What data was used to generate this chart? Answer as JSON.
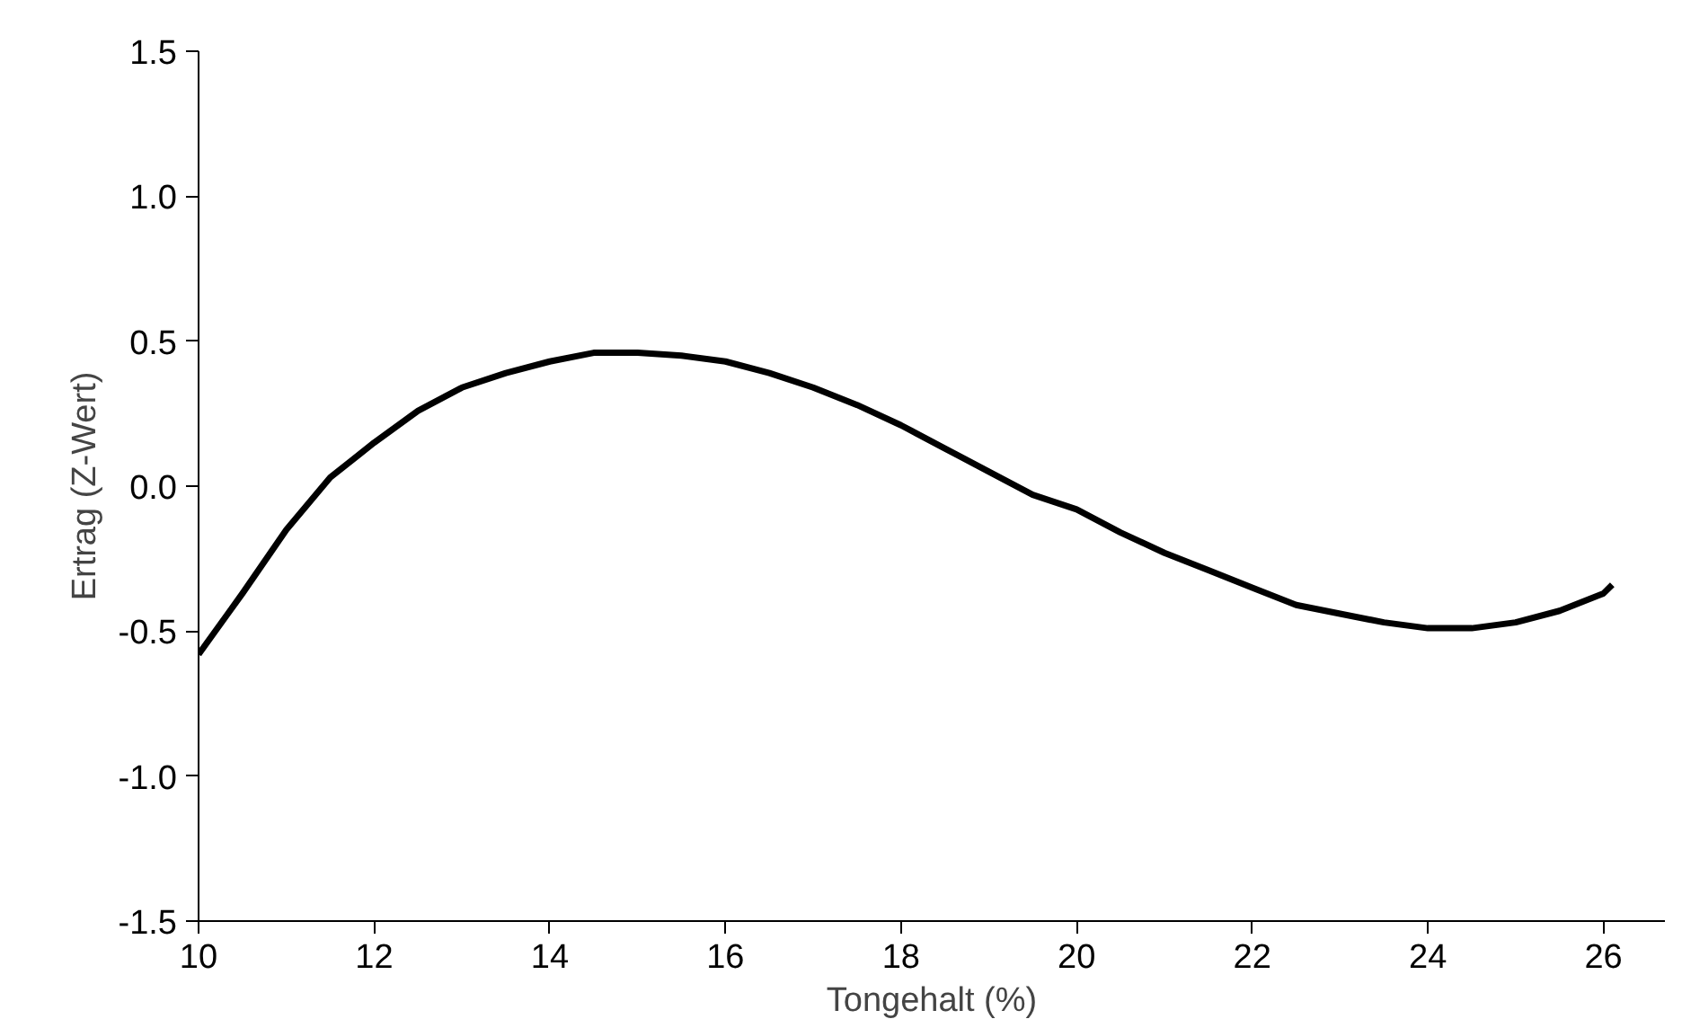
{
  "chart_data": {
    "type": "line",
    "xlabel": "Tongehalt (%)",
    "ylabel": "Ertrag (Z-Wert)",
    "x": [
      10,
      10.5,
      11,
      11.5,
      12,
      12.5,
      13,
      13.5,
      14,
      14.5,
      15,
      15.5,
      16,
      16.5,
      17,
      17.5,
      18,
      18.5,
      19,
      19.5,
      20,
      20.5,
      21,
      21.5,
      22,
      22.5,
      23,
      23.5,
      24,
      24.5,
      25,
      25.5,
      26,
      26.1
    ],
    "series": [
      {
        "color": "#000000",
        "values": [
          -0.58,
          -0.37,
          -0.15,
          0.03,
          0.15,
          0.26,
          0.34,
          0.39,
          0.43,
          0.46,
          0.46,
          0.45,
          0.43,
          0.39,
          0.34,
          0.28,
          0.21,
          0.13,
          0.05,
          -0.03,
          -0.08,
          -0.16,
          -0.23,
          -0.29,
          -0.35,
          -0.41,
          -0.44,
          -0.47,
          -0.49,
          -0.49,
          -0.47,
          -0.43,
          -0.37,
          -0.34
        ]
      }
    ],
    "xlim": [
      10,
      26.7
    ],
    "xticks": [
      10,
      12,
      14,
      16,
      18,
      20,
      22,
      24,
      26
    ],
    "ylim": [
      -1.5,
      1.5
    ],
    "yticks": [
      {
        "value": -1.5,
        "label": "-1.5"
      },
      {
        "value": -1,
        "label": "-1.0"
      },
      {
        "value": -0.5,
        "label": "-0.5"
      },
      {
        "value": 0,
        "label": "0.0"
      },
      {
        "value": 0.5,
        "label": "0.5"
      },
      {
        "value": 1,
        "label": "1.0"
      },
      {
        "value": 1.5,
        "label": "1.5"
      }
    ],
    "grid": false,
    "line_style": "solid",
    "marker": "none"
  }
}
